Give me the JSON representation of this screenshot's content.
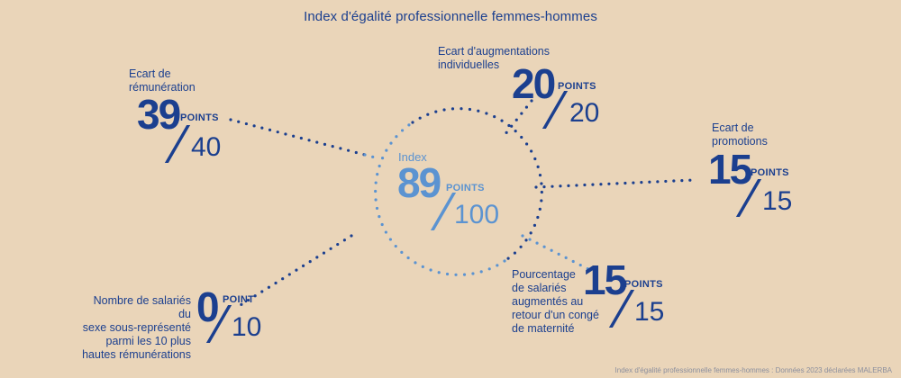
{
  "title": "Index d'égalité professionnelle femmes-hommes",
  "colors": {
    "background": "#ead5b9",
    "dark_blue": "#1b3f8f",
    "light_blue": "#5b93d1",
    "footer": "#8b8f9e"
  },
  "center": {
    "label": "Index",
    "value": "89",
    "unit": "POINTS",
    "max": "100"
  },
  "indicators": {
    "remuneration": {
      "label_lines": [
        "Ecart de",
        "rémunération"
      ],
      "value": "39",
      "unit": "POINTS",
      "max": "40"
    },
    "augmentations": {
      "label_lines": [
        "Ecart d'augmentations",
        "individuelles"
      ],
      "value": "20",
      "unit": "POINTS",
      "max": "20"
    },
    "promotions": {
      "label_lines": [
        "Ecart de",
        "promotions"
      ],
      "value": "15",
      "unit": "POINTS",
      "max": "15"
    },
    "maternite": {
      "label_lines": [
        "Pourcentage",
        "de salariés",
        "augmentés au",
        "retour d'un congé",
        "de maternité"
      ],
      "value": "15",
      "unit": "POINTS",
      "max": "15"
    },
    "hautes_remunerations": {
      "label_lines": [
        "Nombre de salariés du",
        "sexe sous-représenté",
        "parmi les 10 plus",
        "hautes rémunérations"
      ],
      "value": "0",
      "unit": "POINT",
      "max": "10"
    }
  },
  "footer": "Index d'égalité professionnelle femmes-hommes : Données 2023 déclarées MALERBA"
}
